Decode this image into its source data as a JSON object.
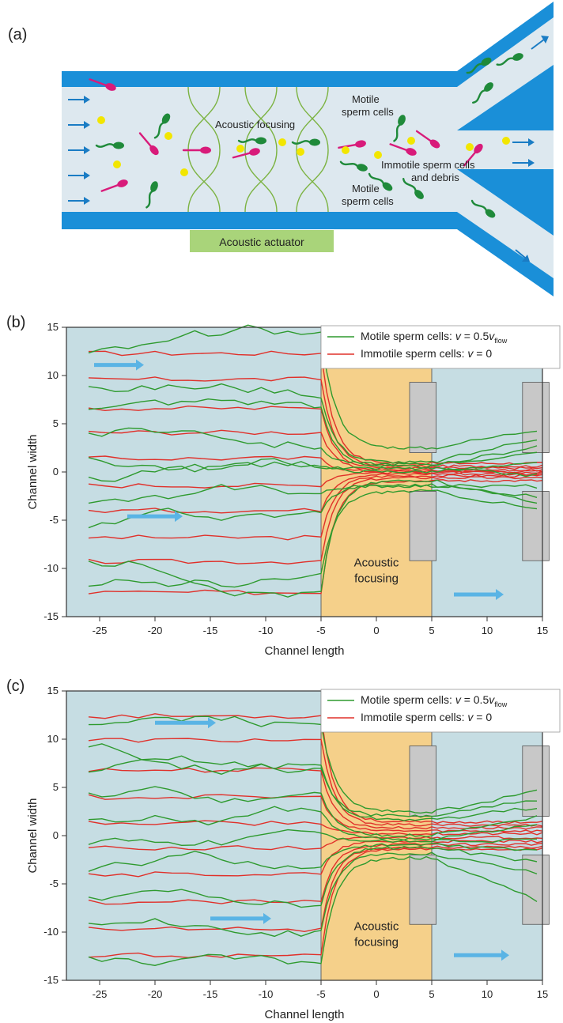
{
  "panel_a": {
    "panel_label": "(a)",
    "labels": {
      "acoustic_focusing": "Acoustic focusing",
      "motile_top_line1": "Motile",
      "motile_top_line2": "sperm cells",
      "immotile_line1": "Immotile sperm cells",
      "immotile_line2": "and debris",
      "motile_bottom_line1": "Motile",
      "motile_bottom_line2": "sperm cells",
      "actuator": "Acoustic actuator"
    },
    "colors": {
      "channel_wall": "#1a8fd8",
      "channel_fluid": "#dde8ef",
      "motile_cell": "#1f8a3a",
      "immotile_cell": "#d81b7a",
      "debris": "#f2e600",
      "actuator": "#a9d47a",
      "flow_arrow": "#1a7cc4",
      "focus_wave": "#7cb342"
    }
  },
  "panel_b": {
    "panel_label": "(b)",
    "chart_data": {
      "type": "line",
      "xlabel": "Channel length",
      "ylabel": "Channel width",
      "xlim": [
        -28,
        15
      ],
      "ylim": [
        -15,
        15
      ],
      "xticks": [
        "-25",
        "-20",
        "-15",
        "-10",
        "-5",
        "0",
        "5",
        "10",
        "15"
      ],
      "yticks": [
        "15",
        "10",
        "5",
        "0",
        "-5",
        "-10",
        "-15"
      ],
      "focus_region": [
        -5,
        5
      ],
      "focus_label_line1": "Acoustic",
      "focus_label_line2": "focusing",
      "legend": {
        "motile_prefix": "Motile sperm cells: ",
        "motile_v": "v",
        "motile_eq": " = 0.5",
        "motile_sub": "flow",
        "immotile_prefix": "Immotile sperm cells: ",
        "immotile_v": "v",
        "immotile_eq": " = 0"
      },
      "colors": {
        "motile": "#2e9a2e",
        "immotile": "#e0302a",
        "background": "#c6dde3",
        "focus": "#f5d08a",
        "arrow": "#5ab4e5",
        "outlet": "#c8c8c8"
      },
      "immotile_start_y": [
        12.3,
        9.6,
        6.6,
        4.1,
        1.4,
        -1.4,
        -4.0,
        -6.8,
        -9.3,
        -12.5
      ],
      "immotile_end_y": [
        0.9,
        0.6,
        0.4,
        0.2,
        0.05,
        -0.05,
        -0.2,
        -0.4,
        -0.6,
        -0.9
      ],
      "motile_start_y": [
        12.1,
        9.3,
        6.8,
        4.1,
        1.5,
        -0.8,
        -3.5,
        -6.2,
        -9.0,
        -12.3
      ],
      "motile_end_y": [
        4.5,
        3.6,
        2.8,
        1.9,
        0.9,
        -0.4,
        -1.5,
        -2.6,
        -3.2,
        -4.0
      ]
    }
  },
  "panel_c": {
    "panel_label": "(c)",
    "chart_data": {
      "type": "line",
      "xlabel": "Channel length",
      "ylabel": "Channel width",
      "xlim": [
        -28,
        15
      ],
      "ylim": [
        -15,
        15
      ],
      "xticks": [
        "-25",
        "-20",
        "-15",
        "-10",
        "-5",
        "0",
        "5",
        "10",
        "15"
      ],
      "yticks": [
        "15",
        "10",
        "5",
        "0",
        "-5",
        "-10",
        "-15"
      ],
      "focus_region": [
        -5,
        5
      ],
      "focus_label_line1": "Acoustic",
      "focus_label_line2": "focusing",
      "legend": {
        "motile_prefix": "Motile sperm cells: ",
        "motile_v": "v",
        "motile_eq": " = 0.5",
        "motile_sub": "flow",
        "immotile_prefix": "Immotile sperm cells: ",
        "immotile_v": "v",
        "immotile_eq": " = 0"
      },
      "colors": {
        "motile": "#2e9a2e",
        "immotile": "#e0302a",
        "background": "#c6dde3",
        "focus": "#f5d08a",
        "arrow": "#5ab4e5",
        "outlet": "#c8c8c8"
      },
      "immotile_start_y": [
        12.4,
        9.9,
        6.8,
        4.0,
        1.3,
        -1.3,
        -4.0,
        -6.9,
        -9.7,
        -12.4
      ],
      "immotile_end_y": [
        1.4,
        1.1,
        0.8,
        0.5,
        0.2,
        -0.2,
        -0.6,
        -0.9,
        -1.2,
        -1.4
      ],
      "motile_start_y": [
        11.8,
        9.0,
        6.0,
        3.9,
        1.5,
        -1.2,
        -3.3,
        -6.5,
        -9.2,
        -12.3
      ],
      "motile_end_y": [
        4.7,
        3.8,
        3.0,
        2.1,
        1.2,
        -0.5,
        -1.6,
        -2.8,
        -4.0,
        -7.0
      ]
    }
  }
}
